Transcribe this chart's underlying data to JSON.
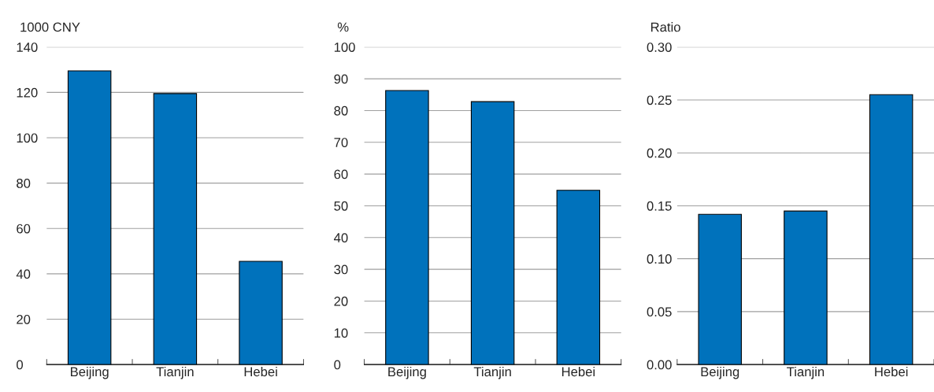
{
  "chart_data": [
    {
      "type": "bar",
      "ylabel": "1000 CNY",
      "categories": [
        "Beijing",
        "Tianjin",
        "Hebei"
      ],
      "values": [
        129.5,
        119.5,
        45.5
      ],
      "color": "#0072bc",
      "ylim": [
        0,
        140
      ],
      "yticks": [
        0,
        20,
        40,
        60,
        80,
        100,
        120,
        140
      ],
      "grid": "y"
    },
    {
      "type": "bar",
      "ylabel": "%",
      "categories": [
        "Beijing",
        "Tianjin",
        "Hebei"
      ],
      "values": [
        86.3,
        82.8,
        54.9
      ],
      "color": "#0072bc",
      "ylim": [
        0,
        100
      ],
      "yticks": [
        0,
        10,
        20,
        30,
        40,
        50,
        60,
        70,
        80,
        90,
        100
      ],
      "grid": "y"
    },
    {
      "type": "bar",
      "ylabel": "Ratio",
      "categories": [
        "Beijing",
        "Tianjin",
        "Hebei"
      ],
      "values": [
        0.142,
        0.145,
        0.255
      ],
      "color": "#0072bc",
      "ylim": [
        0,
        0.3
      ],
      "yticks": [
        {
          "value": 0,
          "label": "0.00"
        },
        {
          "value": 0.05,
          "label": "0.05"
        },
        {
          "value": 0.1,
          "label": "0.10"
        },
        {
          "value": 0.15,
          "label": "0.15"
        },
        {
          "value": 0.2,
          "label": "0.20"
        },
        {
          "value": 0.25,
          "label": "0.25"
        },
        {
          "value": 0.3,
          "label": "0.30"
        }
      ],
      "grid": "y"
    }
  ]
}
